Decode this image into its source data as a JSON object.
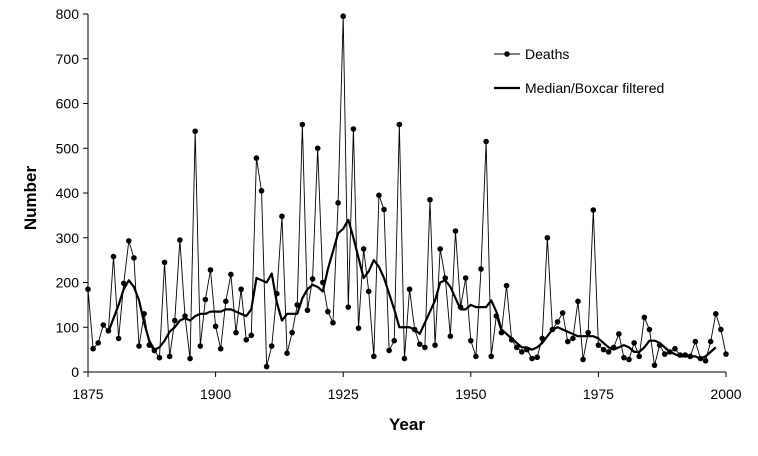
{
  "chart_data": {
    "type": "line",
    "xlabel": "Year",
    "ylabel": "Number",
    "xlim": [
      1875,
      2000
    ],
    "ylim": [
      0,
      800
    ],
    "xticks": [
      "1875",
      "1900",
      "1925",
      "1950",
      "1975",
      "2000"
    ],
    "yticks": [
      "0",
      "100",
      "200",
      "300",
      "400",
      "500",
      "600",
      "700",
      "800"
    ],
    "grid": false,
    "legend_position": "top-right",
    "series": [
      {
        "name": "Deaths",
        "style": "line-with-markers",
        "x": [
          1875,
          1876,
          1877,
          1878,
          1879,
          1880,
          1881,
          1882,
          1883,
          1884,
          1885,
          1886,
          1887,
          1888,
          1889,
          1890,
          1891,
          1892,
          1893,
          1894,
          1895,
          1896,
          1897,
          1898,
          1899,
          1900,
          1901,
          1902,
          1903,
          1904,
          1905,
          1906,
          1907,
          1908,
          1909,
          1910,
          1911,
          1912,
          1913,
          1914,
          1915,
          1916,
          1917,
          1918,
          1919,
          1920,
          1921,
          1922,
          1923,
          1924,
          1925,
          1926,
          1927,
          1928,
          1929,
          1930,
          1931,
          1932,
          1933,
          1934,
          1935,
          1936,
          1937,
          1938,
          1939,
          1940,
          1941,
          1942,
          1943,
          1944,
          1945,
          1946,
          1947,
          1948,
          1949,
          1950,
          1951,
          1952,
          1953,
          1954,
          1955,
          1956,
          1957,
          1958,
          1959,
          1960,
          1961,
          1962,
          1963,
          1964,
          1965,
          1966,
          1967,
          1968,
          1969,
          1970,
          1971,
          1972,
          1973,
          1974,
          1975,
          1976,
          1977,
          1978,
          1979,
          1980,
          1981,
          1982,
          1983,
          1984,
          1985,
          1986,
          1987,
          1988,
          1989,
          1990,
          1991,
          1992,
          1993,
          1994,
          1995,
          1996,
          1997,
          1998,
          1999,
          2000
        ],
        "y": [
          185,
          52,
          65,
          105,
          92,
          258,
          75,
          198,
          293,
          255,
          58,
          130,
          60,
          48,
          32,
          245,
          35,
          115,
          295,
          125,
          30,
          538,
          58,
          162,
          228,
          102,
          52,
          158,
          218,
          88,
          185,
          72,
          82,
          478,
          405,
          12,
          58,
          175,
          348,
          42,
          88,
          150,
          553,
          138,
          208,
          500,
          200,
          135,
          110,
          378,
          795,
          145,
          543,
          98,
          275,
          180,
          35,
          395,
          363,
          48,
          70,
          553,
          30,
          185,
          95,
          62,
          55,
          385,
          60,
          275,
          210,
          80,
          315,
          145,
          210,
          70,
          35,
          230,
          515,
          35,
          125,
          88,
          193,
          72,
          55,
          45,
          50,
          30,
          33,
          75,
          300,
          95,
          112,
          132,
          68,
          75,
          158,
          28,
          88,
          362,
          60,
          50,
          45,
          55,
          85,
          32,
          28,
          65,
          35,
          122,
          95,
          15,
          60,
          40,
          45,
          52,
          38,
          38,
          35,
          68,
          30,
          25,
          68,
          130,
          95,
          40
        ]
      },
      {
        "name": "Median/Boxcar filtered",
        "style": "line",
        "x": [
          1875,
          1877,
          1879,
          1880,
          1881,
          1882,
          1883,
          1884,
          1885,
          1886,
          1887,
          1888,
          1889,
          1890,
          1891,
          1892,
          1893,
          1894,
          1895,
          1896,
          1897,
          1898,
          1899,
          1900,
          1901,
          1902,
          1903,
          1904,
          1905,
          1906,
          1907,
          1908,
          1909,
          1910,
          1911,
          1912,
          1913,
          1914,
          1915,
          1916,
          1917,
          1918,
          1919,
          1920,
          1921,
          1922,
          1923,
          1924,
          1925,
          1926,
          1927,
          1928,
          1929,
          1930,
          1931,
          1932,
          1933,
          1934,
          1935,
          1936,
          1937,
          1938,
          1939,
          1940,
          1941,
          1942,
          1943,
          1944,
          1945,
          1946,
          1947,
          1948,
          1949,
          1950,
          1951,
          1952,
          1953,
          1954,
          1955,
          1956,
          1957,
          1958,
          1959,
          1960,
          1961,
          1962,
          1963,
          1964,
          1965,
          1966,
          1967,
          1968,
          1969,
          1970,
          1971,
          1972,
          1973,
          1974,
          1975,
          1976,
          1977,
          1978,
          1979,
          1980,
          1981,
          1982,
          1983,
          1984,
          1985,
          1986,
          1987,
          1988,
          1989,
          1990,
          1991,
          1992,
          1993,
          1994,
          1995,
          1996,
          1997,
          1998
        ],
        "y": [
          null,
          null,
          90,
          120,
          150,
          185,
          205,
          190,
          160,
          110,
          70,
          50,
          55,
          70,
          90,
          100,
          115,
          120,
          115,
          125,
          130,
          130,
          135,
          135,
          135,
          140,
          140,
          135,
          130,
          125,
          140,
          210,
          205,
          200,
          220,
          155,
          115,
          130,
          130,
          130,
          165,
          185,
          195,
          190,
          180,
          230,
          270,
          310,
          320,
          340,
          300,
          255,
          210,
          225,
          250,
          235,
          210,
          175,
          140,
          100,
          100,
          100,
          95,
          85,
          110,
          135,
          160,
          200,
          205,
          190,
          165,
          140,
          140,
          150,
          145,
          145,
          145,
          160,
          135,
          95,
          85,
          75,
          65,
          55,
          55,
          50,
          55,
          65,
          80,
          95,
          100,
          95,
          90,
          85,
          80,
          80,
          80,
          80,
          75,
          65,
          55,
          50,
          55,
          60,
          55,
          45,
          45,
          55,
          70,
          70,
          65,
          55,
          45,
          40,
          35,
          35,
          35,
          35,
          30,
          35,
          45,
          55
        ]
      }
    ]
  }
}
